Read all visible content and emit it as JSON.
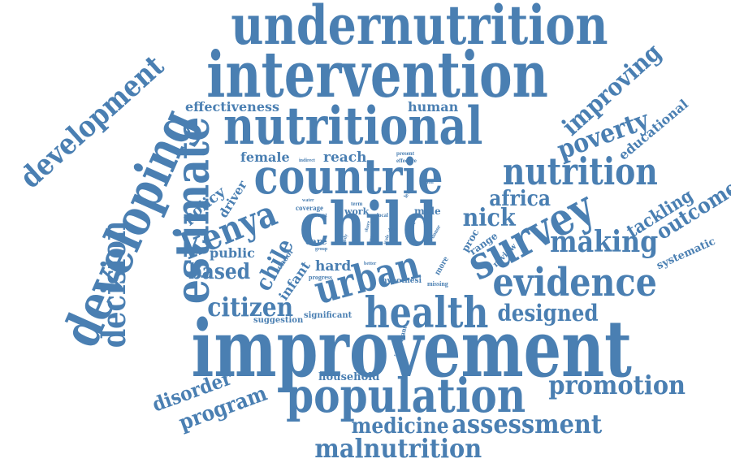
{
  "cloud": {
    "color": "#4a7fb2",
    "words": {
      "undernutrition": "undernutrition",
      "intervention": "intervention",
      "nutritional": "nutritional",
      "countrie": "countrie",
      "nutrition": "nutrition",
      "child": "child",
      "survey": "survey",
      "kenya": "kenya",
      "urban": "urban",
      "health": "health",
      "evidence": "evidence",
      "improvement": "improvement",
      "population": "population",
      "developing": "developing",
      "development": "development",
      "estimate": "estimate",
      "decision": "decision",
      "improving": "improving",
      "poverty": "poverty",
      "educational": "educational",
      "africa": "africa",
      "nick": "nick",
      "making": "making",
      "tackling": "tackling",
      "outcome": "outcome",
      "systematic": "systematic",
      "effectiveness": "effectiveness",
      "human": "human",
      "female": "female",
      "reach": "reach",
      "indirect": "indirect",
      "present": "present",
      "effective": "effective",
      "policy": "policy",
      "driver": "driver",
      "public": "public",
      "based": "based",
      "chile": "chile",
      "infant": "infant",
      "citizen": "citizen",
      "hard": "hard",
      "care": "care",
      "coverage": "coverage",
      "recent": "recent",
      "water": "water",
      "term": "term",
      "work": "work",
      "male": "male",
      "local": "local",
      "level": "level",
      "action": "action",
      "paper": "paper",
      "proc": "proc",
      "range": "range",
      "review": "review",
      "progress": "progress",
      "hypothesi": "hypothesi",
      "missing": "missing",
      "more": "more",
      "better": "better",
      "school": "school",
      "group": "group",
      "designed": "designed",
      "suggestion": "suggestion",
      "significant": "significant",
      "household": "household",
      "important": "important",
      "disorder": "disorder",
      "program": "program",
      "promotion": "promotion",
      "medicine": "medicine",
      "assessment": "assessment",
      "malnutrition": "malnutrition",
      "share": "share",
      "year": "year",
      "donor": "donor",
      "scale": "scale",
      "study": "study",
      "area": "area"
    }
  }
}
